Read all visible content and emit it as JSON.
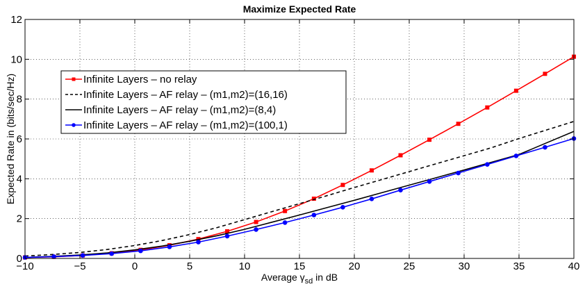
{
  "chart_data": {
    "type": "line",
    "title": "Maximize Expected Rate",
    "xlabel": "Average γ_sd in dB",
    "ylabel": "Expected Rate in (bits/sec/Hz)",
    "xlim": [
      -10,
      40
    ],
    "ylim": [
      0,
      12
    ],
    "xticks": [
      -10,
      -5,
      0,
      5,
      10,
      15,
      20,
      25,
      30,
      35,
      40
    ],
    "yticks": [
      0,
      2,
      4,
      6,
      8,
      10,
      12
    ],
    "grid": true,
    "legend_position": "top-left",
    "series": [
      {
        "name": "Infinite Layers – no relay",
        "color": "#ff0000",
        "line_style": "solid",
        "marker": "square",
        "x": [
          -10,
          -7.37,
          -4.74,
          -2.11,
          0.53,
          3.16,
          5.79,
          8.42,
          11.05,
          13.68,
          16.32,
          18.95,
          21.58,
          24.21,
          26.84,
          29.47,
          32.11,
          34.74,
          37.37,
          40
        ],
        "y": [
          0.05,
          0.08,
          0.15,
          0.26,
          0.43,
          0.66,
          0.97,
          1.36,
          1.83,
          2.38,
          3.0,
          3.69,
          4.42,
          5.18,
          5.96,
          6.76,
          7.58,
          8.42,
          9.27,
          10.13
        ]
      },
      {
        "name": "Infinite Layers – AF relay – (m1,m2)=(16,16)",
        "color": "#000000",
        "line_style": "dashed",
        "marker": "none",
        "x": [
          -10,
          -7.5,
          -5,
          -2.5,
          0,
          2.5,
          5,
          7.5,
          10,
          12.5,
          15,
          17.5,
          20,
          22.5,
          25,
          27.5,
          30,
          32.5,
          35,
          37.5,
          40
        ],
        "y": [
          0.12,
          0.2,
          0.3,
          0.45,
          0.65,
          0.9,
          1.2,
          1.55,
          1.95,
          2.35,
          2.75,
          3.15,
          3.56,
          3.96,
          4.36,
          4.76,
          5.16,
          5.56,
          6.02,
          6.45,
          6.88
        ]
      },
      {
        "name": "Infinite Layers – AF relay – (m1,m2)=(8,4)",
        "color": "#000000",
        "line_style": "solid",
        "marker": "none",
        "x": [
          -10,
          -7.5,
          -5,
          -2.5,
          0,
          2.5,
          5,
          7.5,
          10,
          12.5,
          15,
          17.5,
          20,
          22.5,
          25,
          27.5,
          30,
          32.5,
          35,
          37.5,
          40
        ],
        "y": [
          0.05,
          0.1,
          0.17,
          0.28,
          0.43,
          0.62,
          0.86,
          1.14,
          1.46,
          1.82,
          2.18,
          2.55,
          2.92,
          3.3,
          3.68,
          4.06,
          4.44,
          4.83,
          5.22,
          5.8,
          6.38
        ]
      },
      {
        "name": "Infinite Layers – AF relay – (m1,m2)=(100,1)",
        "color": "#0000ff",
        "line_style": "solid",
        "marker": "circle",
        "x": [
          -10,
          -7.37,
          -4.74,
          -2.11,
          0.53,
          3.16,
          5.79,
          8.42,
          11.05,
          13.68,
          16.32,
          18.95,
          21.58,
          24.21,
          26.84,
          29.47,
          32.11,
          34.74,
          37.37,
          40
        ],
        "y": [
          0.05,
          0.09,
          0.15,
          0.24,
          0.38,
          0.58,
          0.82,
          1.12,
          1.45,
          1.8,
          2.18,
          2.57,
          2.99,
          3.43,
          3.86,
          4.29,
          4.72,
          5.15,
          5.58,
          6.02
        ]
      }
    ]
  }
}
